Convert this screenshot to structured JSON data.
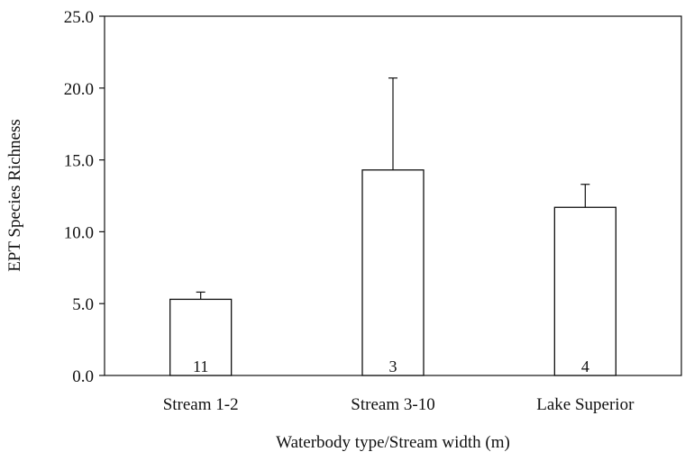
{
  "chart_data": {
    "type": "bar",
    "title": "",
    "xlabel": "Waterbody type/Stream width (m)",
    "ylabel": "EPT Species Richness",
    "categories": [
      "Stream 1-2",
      "Stream 3-10",
      "Lake Superior"
    ],
    "values": [
      5.3,
      14.3,
      11.7
    ],
    "error_plus": [
      0.5,
      6.4,
      1.6
    ],
    "sample_sizes": [
      "11",
      "3",
      "4"
    ],
    "ylim": [
      0,
      25
    ],
    "yticks": [
      "0.0",
      "5.0",
      "10.0",
      "15.0",
      "20.0",
      "25.0"
    ],
    "grid": false,
    "legend": "none",
    "colors": {
      "bar_fill": "#ffffff",
      "bar_stroke": "#111111",
      "axis": "#111111"
    }
  }
}
